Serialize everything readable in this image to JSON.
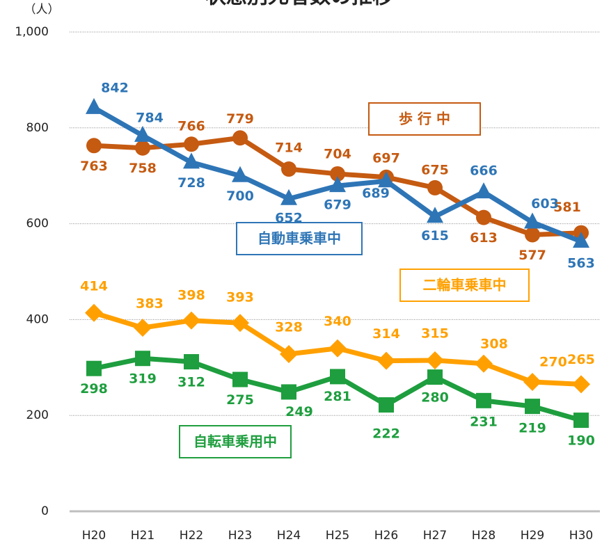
{
  "chart_data": {
    "type": "line",
    "title": "状態別死者数の推移",
    "y_label": "（人）",
    "categories": [
      "H20",
      "H21",
      "H22",
      "H23",
      "H24",
      "H25",
      "H26",
      "H27",
      "H28",
      "H29",
      "H30"
    ],
    "ylim": [
      0,
      1000
    ],
    "yticks": [
      0,
      200,
      400,
      600,
      800,
      {
        "value": 1000,
        "label": "1,000"
      }
    ],
    "grid": true,
    "series": [
      {
        "name": "歩 行 中",
        "color": "#c55a11",
        "marker": "circle",
        "values": [
          763,
          758,
          766,
          779,
          714,
          704,
          697,
          675,
          613,
          577,
          581
        ]
      },
      {
        "name": "自動車乗車中",
        "color": "#2e75b6",
        "marker": "triangle",
        "values": [
          842,
          784,
          728,
          700,
          652,
          679,
          689,
          615,
          666,
          603,
          563
        ]
      },
      {
        "name": "二輪車乗車中",
        "color": "#ffa000",
        "marker": "diamond",
        "values": [
          414,
          383,
          398,
          393,
          328,
          340,
          314,
          315,
          308,
          270,
          265
        ]
      },
      {
        "name": "自転車乗用中",
        "color": "#1e9e3e",
        "marker": "square",
        "values": [
          298,
          319,
          312,
          275,
          249,
          281,
          222,
          280,
          231,
          219,
          190
        ]
      }
    ]
  }
}
